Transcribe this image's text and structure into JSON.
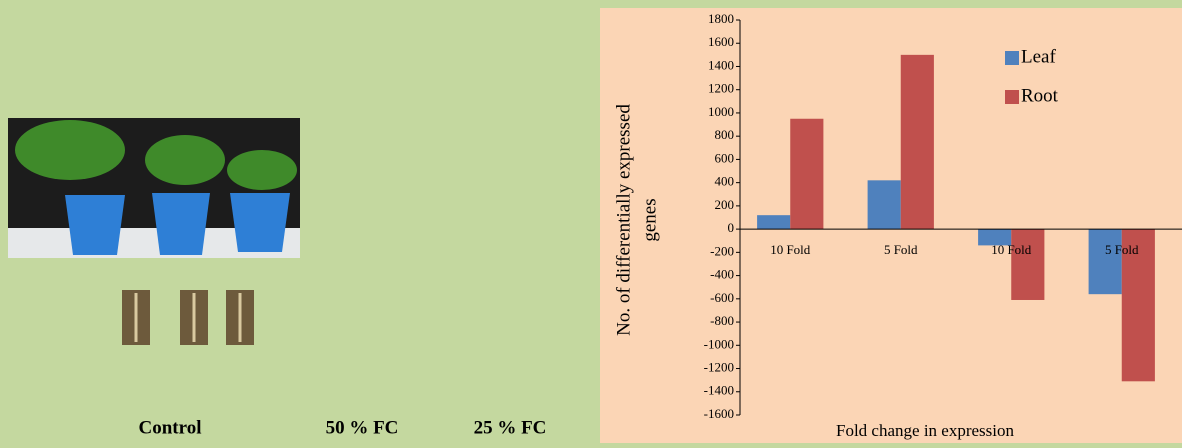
{
  "photo_panel": {
    "labels": [
      "Control",
      "50 % FC",
      "25 % FC"
    ]
  },
  "chart_data": {
    "type": "bar",
    "y_label_lines": [
      "No. of differentially expressed",
      "genes"
    ],
    "x_label": "Fold change in expression",
    "categories": [
      "10 Fold",
      "5 Fold",
      "10 Fold",
      "5 Fold"
    ],
    "series": [
      {
        "name": "Leaf",
        "color": "#4f81bd",
        "values": [
          120,
          420,
          -140,
          -560
        ]
      },
      {
        "name": "Root",
        "color": "#c0504d",
        "values": [
          950,
          1500,
          -610,
          -1310
        ]
      }
    ],
    "ylim": [
      -1600,
      1800
    ],
    "yticks": [
      -1600,
      -1400,
      -1200,
      -1000,
      -800,
      -600,
      -400,
      -200,
      0,
      200,
      400,
      600,
      800,
      1000,
      1200,
      1400,
      1600,
      1800
    ],
    "grid": false
  }
}
